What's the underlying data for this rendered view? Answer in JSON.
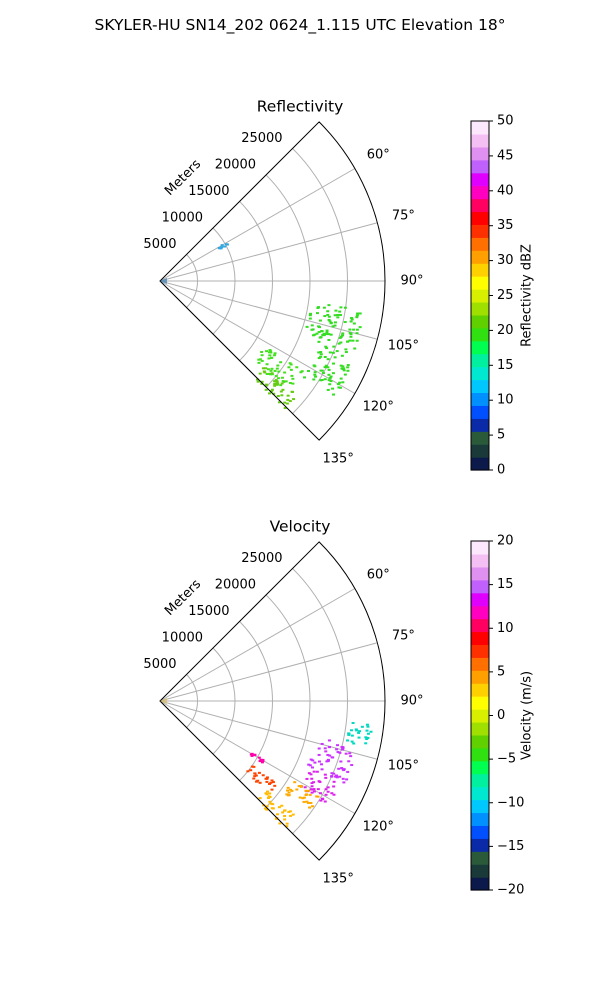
{
  "figure": {
    "title": "SKYLER-HU  SN14_202  0624_1.115 UTC Elevation 18°"
  },
  "chart_data": [
    {
      "type": "polar-sector-scan",
      "title": "Reflectivity",
      "radial_axis_label": "Meters",
      "radial_ticks": [
        5000,
        10000,
        15000,
        20000,
        25000
      ],
      "radial_tick_labels": [
        "5000",
        "10000",
        "15000",
        "20000",
        "25000"
      ],
      "radial_range": [
        0,
        30000
      ],
      "angle_range_deg": [
        45,
        135
      ],
      "angle_ticks_deg": [
        60,
        75,
        90,
        105,
        120,
        135
      ],
      "angle_tick_labels": [
        "60°",
        "75°",
        "90°",
        "105°",
        "120°",
        "135°"
      ],
      "grid": true,
      "colorbar": {
        "label": "Reflectivity dBZ",
        "range": [
          0,
          50
        ],
        "ticks": [
          0,
          5,
          10,
          15,
          20,
          25,
          30,
          35,
          40,
          45,
          50
        ],
        "tick_labels": [
          "0",
          "5",
          "10",
          "15",
          "20",
          "25",
          "30",
          "35",
          "40",
          "45",
          "50"
        ],
        "colors": [
          "#0b1a4a",
          "#1a3a3a",
          "#2a5a3a",
          "#0a2aa8",
          "#0050ff",
          "#0090ff",
          "#00c8ff",
          "#00e8d0",
          "#00f0a0",
          "#00ff50",
          "#30e010",
          "#60d000",
          "#a0e000",
          "#d8f000",
          "#ffff00",
          "#ffd000",
          "#ffa000",
          "#ff7000",
          "#ff3000",
          "#ff0000",
          "#ff0060",
          "#ff00c0",
          "#e000ff",
          "#c060ff",
          "#e090f0",
          "#f4c0f4",
          "#fce8fc"
        ]
      },
      "echo_regions": [
        {
          "angle_range_deg": [
            98,
            112
          ],
          "range_m": [
            20500,
            27500
          ],
          "value": 18,
          "color": "#33dd22"
        },
        {
          "angle_range_deg": [
            112,
            124
          ],
          "range_m": [
            23000,
            28000
          ],
          "value": 17,
          "color": "#33dd22"
        },
        {
          "angle_range_deg": [
            122,
            131
          ],
          "range_m": [
            16500,
            22500
          ],
          "value": 16,
          "color": "#44e020"
        },
        {
          "angle_range_deg": [
            129,
            136
          ],
          "range_m": [
            18000,
            24000
          ],
          "value": 20,
          "color": "#66cc11"
        },
        {
          "angle_range_deg": [
            60,
            62
          ],
          "range_m": [
            9000,
            10500
          ],
          "value": 10,
          "color": "#33a8e0"
        }
      ]
    },
    {
      "type": "polar-sector-scan",
      "title": "Velocity",
      "radial_axis_label": "Meters",
      "radial_ticks": [
        5000,
        10000,
        15000,
        20000,
        25000
      ],
      "radial_tick_labels": [
        "5000",
        "10000",
        "15000",
        "20000",
        "25000"
      ],
      "radial_range": [
        0,
        30000
      ],
      "angle_range_deg": [
        45,
        135
      ],
      "angle_ticks_deg": [
        60,
        75,
        90,
        105,
        120,
        135
      ],
      "angle_tick_labels": [
        "60°",
        "75°",
        "90°",
        "105°",
        "120°",
        "135°"
      ],
      "grid": true,
      "colorbar": {
        "label": "Velocity (m/s)",
        "range": [
          -20,
          20
        ],
        "ticks": [
          -20,
          -15,
          -10,
          -5,
          0,
          5,
          10,
          15,
          20
        ],
        "tick_labels": [
          "−20",
          "−15",
          "−10",
          "−5",
          "0",
          "5",
          "10",
          "15",
          "20"
        ],
        "colors": [
          "#0b1a4a",
          "#1a3a3a",
          "#2a5a3a",
          "#0a2aa8",
          "#0050ff",
          "#0090ff",
          "#00c8ff",
          "#00e8d0",
          "#00f0a0",
          "#00ff50",
          "#30e010",
          "#60d000",
          "#a0e000",
          "#d8f000",
          "#ffff00",
          "#ffd000",
          "#ffa000",
          "#ff7000",
          "#ff3000",
          "#ff0000",
          "#ff0060",
          "#ff00c0",
          "#e000ff",
          "#c060ff",
          "#e090f0",
          "#f4c0f4",
          "#fce8fc"
        ]
      },
      "echo_regions": [
        {
          "angle_range_deg": [
            96,
            103
          ],
          "range_m": [
            25500,
            28500
          ],
          "value": -11,
          "color": "#00d8c0"
        },
        {
          "angle_range_deg": [
            103,
            114
          ],
          "range_m": [
            21500,
            27000
          ],
          "value": 15,
          "color": "#cc33ff"
        },
        {
          "angle_range_deg": [
            114,
            122
          ],
          "range_m": [
            22000,
            26500
          ],
          "value": 14,
          "color": "#dd22ee"
        },
        {
          "angle_range_deg": [
            121,
            127
          ],
          "range_m": [
            20500,
            25000
          ],
          "value": 3,
          "color": "#ffaa00"
        },
        {
          "angle_range_deg": [
            125,
            130
          ],
          "range_m": [
            15000,
            19500
          ],
          "value": 8,
          "color": "#ff4400"
        },
        {
          "angle_range_deg": [
            130,
            136
          ],
          "range_m": [
            18500,
            24000
          ],
          "value": 3,
          "color": "#ffbb00"
        },
        {
          "angle_range_deg": [
            118,
            121
          ],
          "range_m": [
            14000,
            16000
          ],
          "value": 12,
          "color": "#ff00aa"
        }
      ]
    }
  ]
}
